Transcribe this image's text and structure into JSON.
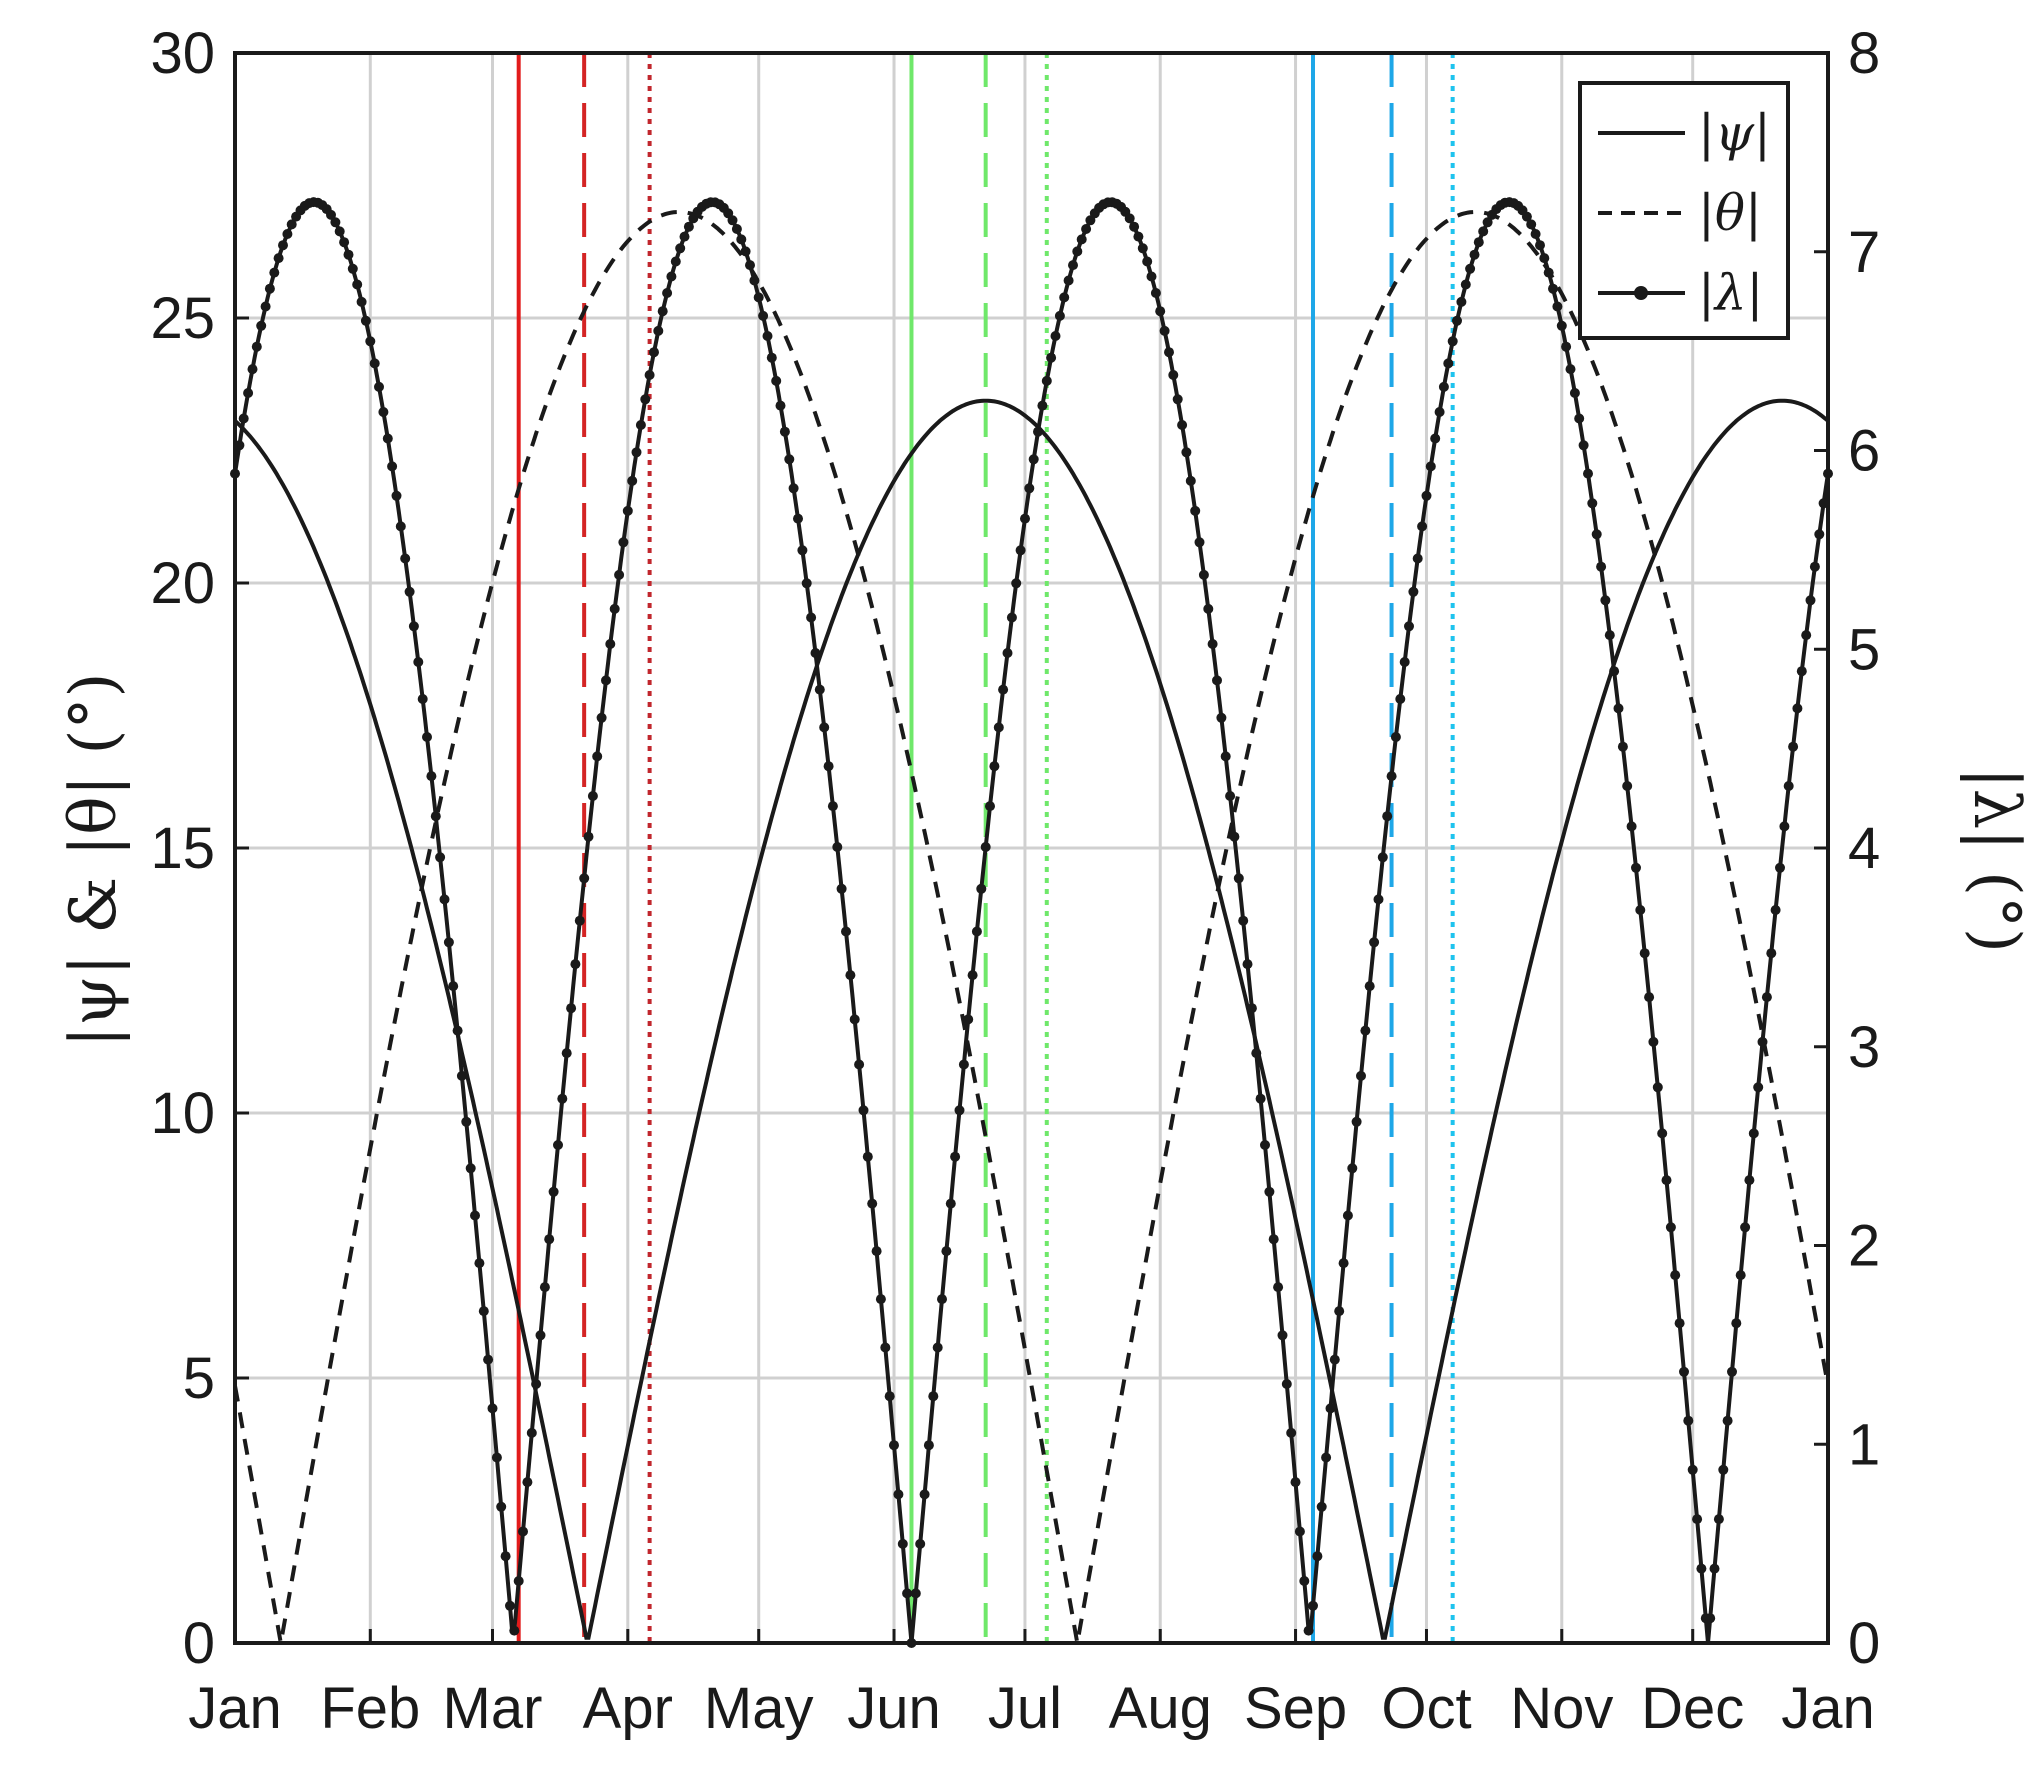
{
  "chart_data": {
    "type": "line",
    "x_label": "",
    "y_left_label": "|ψ| & |θ| (°)",
    "y_right_label": "|λ| (°)",
    "x_ticks": [
      "Jan",
      "Feb",
      "Mar",
      "Apr",
      "May",
      "Jun",
      "Jul",
      "Aug",
      "Sep",
      "Oct",
      "Nov",
      "Dec",
      "Jan"
    ],
    "y_left_ticks": [
      0,
      5,
      10,
      15,
      20,
      25,
      30
    ],
    "y_right_ticks": [
      0,
      1,
      2,
      3,
      4,
      5,
      6,
      7,
      8
    ],
    "ylim_left": [
      0,
      30
    ],
    "ylim_right": [
      0,
      8
    ],
    "grid": true,
    "legend_position": "top-right",
    "series": [
      {
        "name": "|ψ|",
        "style": "solid",
        "axis": "left",
        "model": "abs(23.44*cos(2*pi*(day-172)/365))"
      },
      {
        "name": "|θ|",
        "style": "dashed",
        "axis": "left",
        "model": "abs(27*sin(2*pi*(day-193)/365))"
      },
      {
        "name": "|λ|",
        "style": "solid-dot",
        "axis": "right",
        "model": "abs(7.25*sin(4*pi*(day-155)/365))"
      }
    ],
    "vertical_markers": [
      {
        "date": "Mar 06",
        "color": "#e21b1b",
        "style": "solid"
      },
      {
        "date": "Mar 21",
        "color": "#d42424",
        "style": "dashed"
      },
      {
        "date": "Apr 05",
        "color": "#c1272d",
        "style": "dotted"
      },
      {
        "date": "Jun 04",
        "color": "#6fe86a",
        "style": "solid"
      },
      {
        "date": "Jun 21",
        "color": "#6fe86a",
        "style": "dashed"
      },
      {
        "date": "Jul 05",
        "color": "#6fe86a",
        "style": "dotted"
      },
      {
        "date": "Sep 04",
        "color": "#1ea7e8",
        "style": "solid"
      },
      {
        "date": "Sep 22",
        "color": "#1ea7e8",
        "style": "dashed"
      },
      {
        "date": "Oct 06",
        "color": "#1ec3ee",
        "style": "dotted"
      }
    ]
  }
}
